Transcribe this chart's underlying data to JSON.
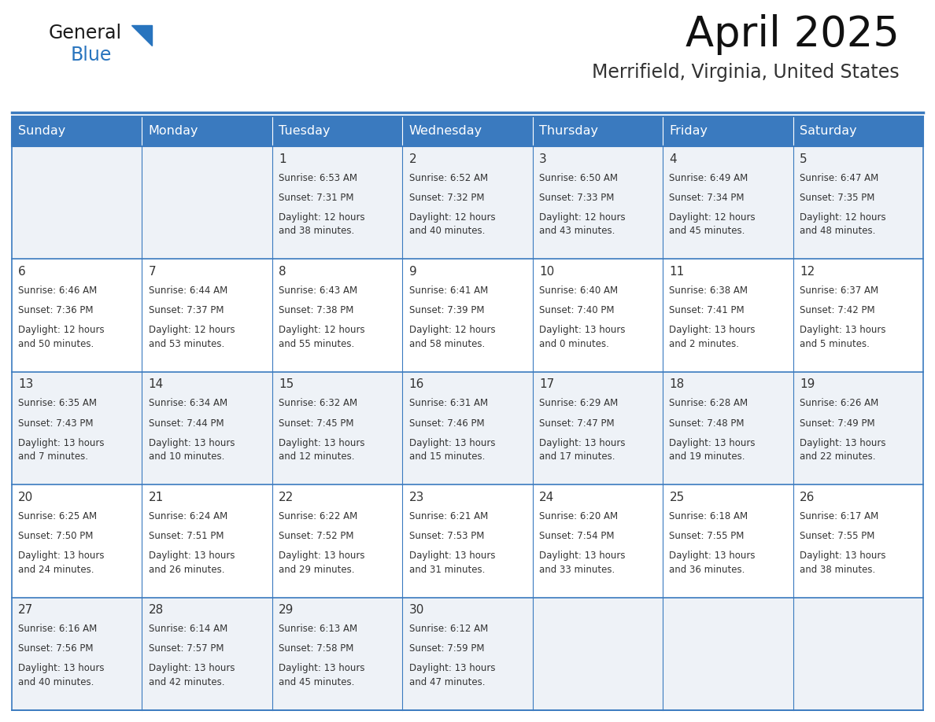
{
  "title": "April 2025",
  "subtitle": "Merrifield, Virginia, United States",
  "days_of_week": [
    "Sunday",
    "Monday",
    "Tuesday",
    "Wednesday",
    "Thursday",
    "Friday",
    "Saturday"
  ],
  "header_bg": "#3a7abf",
  "header_text_color": "#ffffff",
  "row_bg_odd": "#eef2f7",
  "row_bg_even": "#ffffff",
  "border_color": "#3a7abf",
  "cell_border_color": "#3a7abf",
  "text_color": "#333333",
  "calendar": [
    [
      {
        "day": null,
        "sunrise": null,
        "sunset": null,
        "daylight": null
      },
      {
        "day": null,
        "sunrise": null,
        "sunset": null,
        "daylight": null
      },
      {
        "day": 1,
        "sunrise": "6:53 AM",
        "sunset": "7:31 PM",
        "daylight": "12 hours\nand 38 minutes."
      },
      {
        "day": 2,
        "sunrise": "6:52 AM",
        "sunset": "7:32 PM",
        "daylight": "12 hours\nand 40 minutes."
      },
      {
        "day": 3,
        "sunrise": "6:50 AM",
        "sunset": "7:33 PM",
        "daylight": "12 hours\nand 43 minutes."
      },
      {
        "day": 4,
        "sunrise": "6:49 AM",
        "sunset": "7:34 PM",
        "daylight": "12 hours\nand 45 minutes."
      },
      {
        "day": 5,
        "sunrise": "6:47 AM",
        "sunset": "7:35 PM",
        "daylight": "12 hours\nand 48 minutes."
      }
    ],
    [
      {
        "day": 6,
        "sunrise": "6:46 AM",
        "sunset": "7:36 PM",
        "daylight": "12 hours\nand 50 minutes."
      },
      {
        "day": 7,
        "sunrise": "6:44 AM",
        "sunset": "7:37 PM",
        "daylight": "12 hours\nand 53 minutes."
      },
      {
        "day": 8,
        "sunrise": "6:43 AM",
        "sunset": "7:38 PM",
        "daylight": "12 hours\nand 55 minutes."
      },
      {
        "day": 9,
        "sunrise": "6:41 AM",
        "sunset": "7:39 PM",
        "daylight": "12 hours\nand 58 minutes."
      },
      {
        "day": 10,
        "sunrise": "6:40 AM",
        "sunset": "7:40 PM",
        "daylight": "13 hours\nand 0 minutes."
      },
      {
        "day": 11,
        "sunrise": "6:38 AM",
        "sunset": "7:41 PM",
        "daylight": "13 hours\nand 2 minutes."
      },
      {
        "day": 12,
        "sunrise": "6:37 AM",
        "sunset": "7:42 PM",
        "daylight": "13 hours\nand 5 minutes."
      }
    ],
    [
      {
        "day": 13,
        "sunrise": "6:35 AM",
        "sunset": "7:43 PM",
        "daylight": "13 hours\nand 7 minutes."
      },
      {
        "day": 14,
        "sunrise": "6:34 AM",
        "sunset": "7:44 PM",
        "daylight": "13 hours\nand 10 minutes."
      },
      {
        "day": 15,
        "sunrise": "6:32 AM",
        "sunset": "7:45 PM",
        "daylight": "13 hours\nand 12 minutes."
      },
      {
        "day": 16,
        "sunrise": "6:31 AM",
        "sunset": "7:46 PM",
        "daylight": "13 hours\nand 15 minutes."
      },
      {
        "day": 17,
        "sunrise": "6:29 AM",
        "sunset": "7:47 PM",
        "daylight": "13 hours\nand 17 minutes."
      },
      {
        "day": 18,
        "sunrise": "6:28 AM",
        "sunset": "7:48 PM",
        "daylight": "13 hours\nand 19 minutes."
      },
      {
        "day": 19,
        "sunrise": "6:26 AM",
        "sunset": "7:49 PM",
        "daylight": "13 hours\nand 22 minutes."
      }
    ],
    [
      {
        "day": 20,
        "sunrise": "6:25 AM",
        "sunset": "7:50 PM",
        "daylight": "13 hours\nand 24 minutes."
      },
      {
        "day": 21,
        "sunrise": "6:24 AM",
        "sunset": "7:51 PM",
        "daylight": "13 hours\nand 26 minutes."
      },
      {
        "day": 22,
        "sunrise": "6:22 AM",
        "sunset": "7:52 PM",
        "daylight": "13 hours\nand 29 minutes."
      },
      {
        "day": 23,
        "sunrise": "6:21 AM",
        "sunset": "7:53 PM",
        "daylight": "13 hours\nand 31 minutes."
      },
      {
        "day": 24,
        "sunrise": "6:20 AM",
        "sunset": "7:54 PM",
        "daylight": "13 hours\nand 33 minutes."
      },
      {
        "day": 25,
        "sunrise": "6:18 AM",
        "sunset": "7:55 PM",
        "daylight": "13 hours\nand 36 minutes."
      },
      {
        "day": 26,
        "sunrise": "6:17 AM",
        "sunset": "7:55 PM",
        "daylight": "13 hours\nand 38 minutes."
      }
    ],
    [
      {
        "day": 27,
        "sunrise": "6:16 AM",
        "sunset": "7:56 PM",
        "daylight": "13 hours\nand 40 minutes."
      },
      {
        "day": 28,
        "sunrise": "6:14 AM",
        "sunset": "7:57 PM",
        "daylight": "13 hours\nand 42 minutes."
      },
      {
        "day": 29,
        "sunrise": "6:13 AM",
        "sunset": "7:58 PM",
        "daylight": "13 hours\nand 45 minutes."
      },
      {
        "day": 30,
        "sunrise": "6:12 AM",
        "sunset": "7:59 PM",
        "daylight": "13 hours\nand 47 minutes."
      },
      {
        "day": null,
        "sunrise": null,
        "sunset": null,
        "daylight": null
      },
      {
        "day": null,
        "sunrise": null,
        "sunset": null,
        "daylight": null
      },
      {
        "day": null,
        "sunrise": null,
        "sunset": null,
        "daylight": null
      }
    ]
  ],
  "logo_general_color": "#1a1a1a",
  "logo_blue_color": "#2874be",
  "logo_triangle_color": "#2874be",
  "title_fontsize": 38,
  "subtitle_fontsize": 17,
  "dow_fontsize": 11.5,
  "day_num_fontsize": 11,
  "cell_text_fontsize": 8.5
}
